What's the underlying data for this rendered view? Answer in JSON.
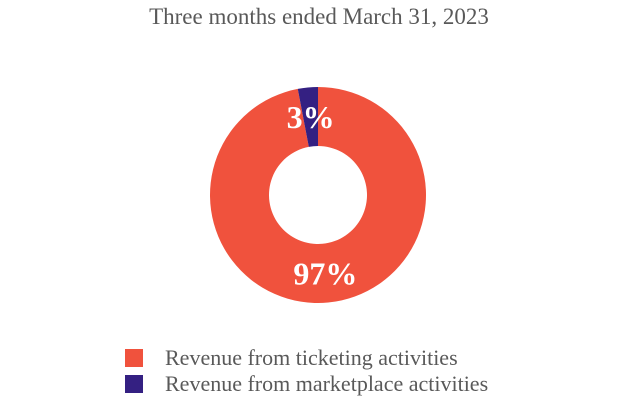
{
  "chart_data": {
    "type": "pie",
    "subtype": "donut",
    "title": "Three months ended March 31, 2023",
    "slices": [
      {
        "label": "Revenue from ticketing activities",
        "value": 97,
        "display": "97%",
        "color": "#F0523D"
      },
      {
        "label": "Revenue from marketplace activities",
        "value": 3,
        "display": "3%",
        "color": "#342082"
      }
    ],
    "start_angle_deg": 0,
    "direction": "clockwise",
    "donut_hole_ratio": 0.454,
    "data_labels": "inside",
    "data_label_color": "#FFFFFF",
    "legend_position": "bottom-left",
    "title_color": "#595959",
    "legend_text_color": "#595959",
    "background_color": "#FFFFFF"
  }
}
